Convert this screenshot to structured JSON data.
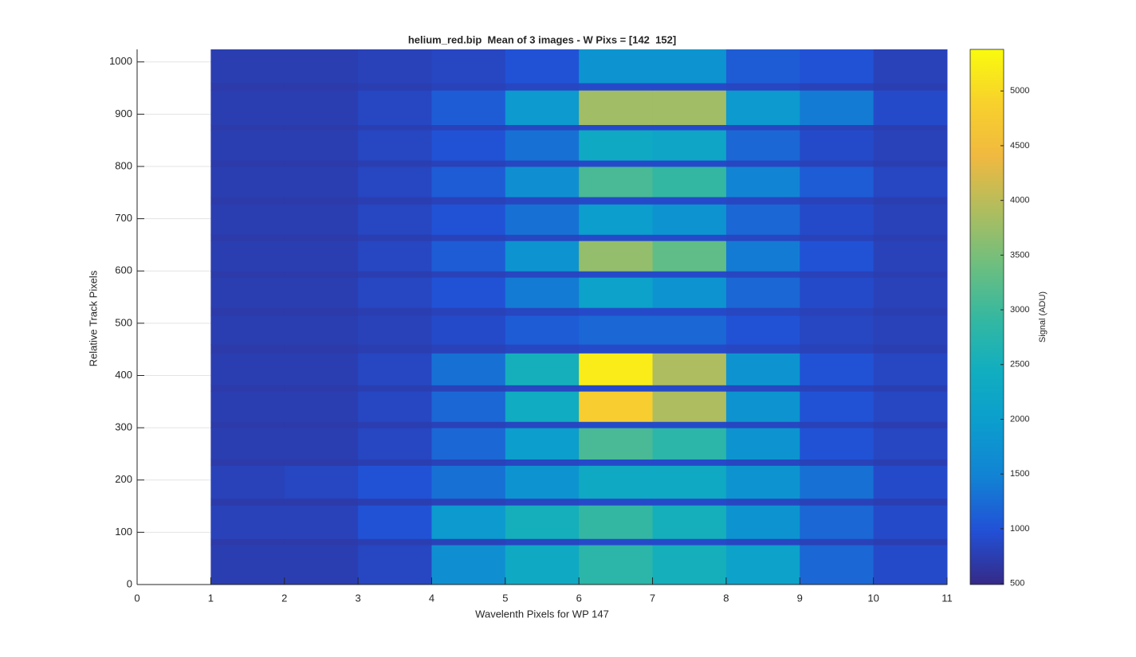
{
  "chart_data": {
    "type": "heatmap",
    "title": "helium_red.bip  Mean of 3 images - W Pixs = [142  152]",
    "xlabel": "Wavelenth Pixels for WP 147",
    "ylabel": "Relative Track Pixels",
    "colorbar_label": "Signal (ADU)",
    "colormap": "parula",
    "x_edges": [
      1,
      2,
      3,
      4,
      5,
      6,
      7,
      8,
      9,
      10,
      11
    ],
    "y_edges": [
      0,
      76,
      88,
      152,
      165,
      228,
      240,
      300,
      312,
      370,
      382,
      443,
      460,
      515,
      530,
      588,
      600,
      658,
      670,
      728,
      742,
      800,
      812,
      870,
      880,
      946,
      960,
      1024
    ],
    "z": [
      [
        750,
        750,
        850,
        1700,
        2300,
        2800,
        2500,
        2100,
        1200,
        900
      ],
      [
        700,
        700,
        750,
        800,
        850,
        900,
        900,
        850,
        800,
        750
      ],
      [
        800,
        800,
        1000,
        1900,
        2500,
        2900,
        2500,
        1800,
        1200,
        900
      ],
      [
        700,
        700,
        750,
        800,
        850,
        900,
        900,
        850,
        800,
        750
      ],
      [
        800,
        850,
        1000,
        1300,
        1800,
        2300,
        2300,
        1800,
        1300,
        900
      ],
      [
        700,
        700,
        750,
        800,
        850,
        900,
        900,
        850,
        800,
        750
      ],
      [
        750,
        750,
        850,
        1200,
        2000,
        3100,
        2800,
        1800,
        1000,
        850
      ],
      [
        700,
        700,
        750,
        800,
        850,
        900,
        900,
        850,
        800,
        750
      ],
      [
        750,
        750,
        850,
        1200,
        2400,
        4800,
        3900,
        1800,
        1000,
        850
      ],
      [
        700,
        700,
        750,
        800,
        850,
        900,
        900,
        850,
        800,
        750
      ],
      [
        750,
        750,
        850,
        1300,
        2500,
        5200,
        3900,
        1800,
        1000,
        850
      ],
      [
        700,
        700,
        750,
        800,
        850,
        900,
        900,
        850,
        800,
        750
      ],
      [
        750,
        750,
        800,
        900,
        1100,
        1200,
        1200,
        1000,
        850,
        800
      ],
      [
        700,
        700,
        750,
        800,
        850,
        900,
        900,
        850,
        800,
        750
      ],
      [
        750,
        750,
        850,
        1000,
        1400,
        2100,
        1800,
        1200,
        900,
        800
      ],
      [
        700,
        700,
        750,
        800,
        850,
        900,
        900,
        850,
        800,
        750
      ],
      [
        750,
        750,
        850,
        1100,
        1800,
        3700,
        3300,
        1400,
        1000,
        800
      ],
      [
        700,
        700,
        750,
        800,
        850,
        900,
        900,
        850,
        800,
        750
      ],
      [
        750,
        750,
        850,
        1000,
        1300,
        2000,
        1800,
        1200,
        900,
        800
      ],
      [
        700,
        700,
        750,
        800,
        850,
        900,
        900,
        850,
        800,
        750
      ],
      [
        750,
        750,
        850,
        1100,
        1700,
        3100,
        2900,
        1500,
        1100,
        850
      ],
      [
        700,
        700,
        750,
        800,
        850,
        900,
        900,
        850,
        800,
        750
      ],
      [
        750,
        750,
        850,
        1000,
        1300,
        2300,
        2200,
        1200,
        900,
        800
      ],
      [
        700,
        700,
        750,
        800,
        850,
        900,
        900,
        850,
        800,
        750
      ],
      [
        750,
        750,
        850,
        1100,
        1900,
        3800,
        3800,
        1900,
        1400,
        900
      ],
      [
        700,
        700,
        750,
        800,
        850,
        900,
        900,
        850,
        800,
        750
      ],
      [
        750,
        750,
        800,
        850,
        1000,
        1800,
        1800,
        1100,
        1000,
        800
      ]
    ],
    "xlim": [
      0,
      11
    ],
    "ylim": [
      0,
      1024
    ],
    "xticks": [
      0,
      1,
      2,
      3,
      4,
      5,
      6,
      7,
      8,
      9,
      10,
      11
    ],
    "yticks": [
      0,
      100,
      200,
      300,
      400,
      500,
      600,
      700,
      800,
      900,
      1000
    ],
    "clim": [
      490,
      5380
    ],
    "cticks": [
      500,
      1000,
      1500,
      2000,
      2500,
      3000,
      3500,
      4000,
      4500,
      5000
    ],
    "grid": true
  }
}
